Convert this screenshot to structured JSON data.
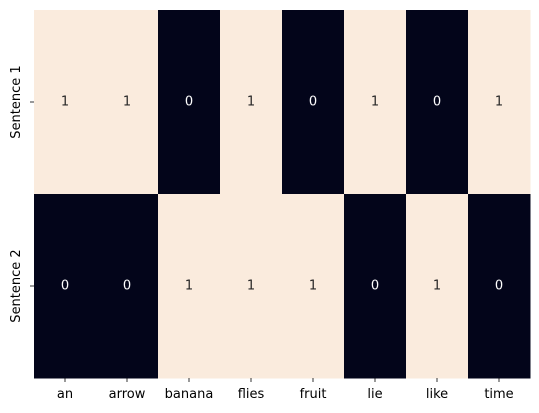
{
  "chart_data": {
    "type": "heatmap",
    "title": "",
    "xlabel": "",
    "ylabel": "",
    "x_categories": [
      "an",
      "arrow",
      "banana",
      "flies",
      "fruit",
      "lie",
      "like",
      "time"
    ],
    "y_categories": [
      "Sentence 1",
      "Sentence 2"
    ],
    "values": [
      [
        1,
        1,
        0,
        1,
        0,
        1,
        0,
        1
      ],
      [
        0,
        0,
        1,
        1,
        1,
        0,
        1,
        0
      ]
    ],
    "annotations": true,
    "colorbar": false,
    "value_range": [
      0,
      1
    ],
    "colors": {
      "low": "#03051a",
      "high": "#faebdd",
      "text_on_low": "#ffffff",
      "text_on_high": "#262626"
    }
  }
}
